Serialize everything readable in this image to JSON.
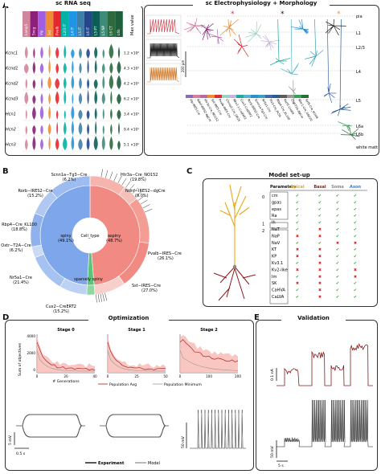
{
  "panelA": {
    "label": "A",
    "rna_title": "sc RNA seq",
    "ephys_title": "sc Electrophysiology + Morphology",
    "genes": [
      "Kcnc1",
      "Kcnd1",
      "Kcnd2",
      "Kcnd3",
      "Hcn1",
      "Hcn2",
      "Hcn3"
    ],
    "max_values": [
      "1.2 ×10²",
      "4.3 ×10¹",
      "4.2 ×10¹",
      "6.2 ×10¹",
      "3.4 ×10¹",
      "9.4 ×10¹",
      "5.1 ×10⁰"
    ],
    "max_header": "Max value",
    "type_headers": [
      "Lamp5",
      "Sncg",
      "Vip",
      "Sst",
      "Pvalb",
      "L2/3 IT",
      "L4 IT",
      "L5 IT",
      "L6 IT",
      "L5 PT",
      "L5 NP",
      "L6 CT",
      "L6b"
    ],
    "type_colors": [
      "#d1869b",
      "#8b1f7a",
      "#a25ee0",
      "#ef8a35",
      "#e5282f",
      "#00b3a4",
      "#1f95e6",
      "#3e7fa8",
      "#25468c",
      "#0b5e56",
      "#3f8b7a",
      "#2e6a3d",
      "#1e5e3b"
    ],
    "layers": [
      "pia",
      "L1",
      "L2/3",
      "L4",
      "L5",
      "L6a",
      "L6b",
      "white matter"
    ],
    "scalebar": "200 µm",
    "cre_lines": [
      "Vip-IRES-Cre",
      "Ndnf-IRES2-dgCre",
      "Htr3a-Cre_NO152",
      "Sst-IRES-Cre",
      "Pvalb-IRES-Cre",
      "Chrna2-Cre_OE25",
      "Nkx2-1-CreERT2",
      "Cux2-CreERT2",
      "Rorb-IRES2-Cre",
      "Scnn1a-Tg3-Cre",
      "Nr5a1-Cre",
      "Tlx3-Cre_PL56",
      "Rbp4-Cre_KL100",
      "Fezf2-CreER",
      "Ctgf-T2A-dgCre",
      "Ntsr1-Cre_GN220",
      "Syt6-Cre_KI148"
    ],
    "cre_colors": [
      "#8b6bb5",
      "#d77f9e",
      "#b06bb0",
      "#ef8a35",
      "#e5282f",
      "#9ad2c4",
      "#c8b4dc",
      "#1fa9a0",
      "#5ab4c8",
      "#2b8fcf",
      "#3aa0b8",
      "#4266a8",
      "#2a5a8e",
      "#5b5b5b",
      "#9a9a9a",
      "#3a9f5a",
      "#2d6b3a"
    ]
  },
  "panelB": {
    "label": "B",
    "center": "Cell_type",
    "inner_labels": [
      "spiny\n(49.1%)",
      "aspiny\n(48.7%)",
      "sparsely spiny"
    ],
    "outer": [
      {
        "name": "Scnn1a−Tg3−Cre",
        "pct": "(6.2%)"
      },
      {
        "name": "Htr3a−Cre_NO152",
        "pct": "(19.8%)"
      },
      {
        "name": "Rorb−IRES2−Cre",
        "pct": "(15.2%)"
      },
      {
        "name": "Ndnf−IRES2−dgCre",
        "pct": "(9.0%)"
      },
      {
        "name": "Rbp4−Cre_KL100",
        "pct": "(18.8%)"
      },
      {
        "name": "Oxtr−T2A−Cre",
        "pct": "(6.2%)"
      },
      {
        "name": "Pvalb−IRES−Cre",
        "pct": "(26.1%)"
      },
      {
        "name": "Nr5a1−Cre",
        "pct": "(21.4%)"
      },
      {
        "name": "Sst−IRES−Cre",
        "pct": "(27.0%)"
      },
      {
        "name": "Cux2−CreERT2",
        "pct": "(15.2%)"
      }
    ]
  },
  "panelC": {
    "label": "C",
    "title": "Model set-up",
    "headers": [
      "Parameters",
      "Apical",
      "Basal",
      "Soma",
      "Axon"
    ],
    "header_colors": [
      "#111111",
      "#e6a817",
      "#8b1a1a",
      "#888888",
      "#3b78c2"
    ],
    "rows": [
      {
        "group": "0",
        "name": "cm",
        "marks": [
          "y",
          "y",
          "y",
          "y"
        ]
      },
      {
        "group": "",
        "name": "gpas",
        "marks": [
          "y",
          "y",
          "y",
          "y"
        ]
      },
      {
        "group": "",
        "name": "epas",
        "marks": [
          "y",
          "y",
          "y",
          "y"
        ]
      },
      {
        "group": "",
        "name": "Ra",
        "marks": [
          "y",
          "y",
          "y",
          "y"
        ]
      },
      {
        "group": "1",
        "name": "Ih",
        "marks": [
          "y",
          "y",
          "y",
          "y"
        ]
      },
      {
        "group": "2",
        "name": "NaT",
        "marks": [
          "y",
          "x",
          "y",
          "y"
        ]
      },
      {
        "group": "",
        "name": "NaP",
        "marks": [
          "x",
          "x",
          "y",
          "y"
        ]
      },
      {
        "group": "",
        "name": "NaV",
        "marks": [
          "y",
          "y",
          "x",
          "x"
        ]
      },
      {
        "group": "",
        "name": "KT",
        "marks": [
          "x",
          "x",
          "y",
          "y"
        ]
      },
      {
        "group": "",
        "name": "KP",
        "marks": [
          "x",
          "x",
          "y",
          "y"
        ]
      },
      {
        "group": "",
        "name": "Kv3.1",
        "marks": [
          "y",
          "x",
          "y",
          "y"
        ]
      },
      {
        "group": "",
        "name": "Kv2-like",
        "marks": [
          "x",
          "x",
          "y",
          "x"
        ]
      },
      {
        "group": "",
        "name": "Im",
        "marks": [
          "y",
          "x",
          "y",
          "x"
        ]
      },
      {
        "group": "",
        "name": "SK",
        "marks": [
          "x",
          "x",
          "y",
          "y"
        ]
      },
      {
        "group": "",
        "name": "CaHVA",
        "marks": [
          "y",
          "x",
          "y",
          "y"
        ]
      },
      {
        "group": "",
        "name": "CaLVA",
        "marks": [
          "y",
          "x",
          "y",
          "y"
        ]
      }
    ]
  },
  "panelD": {
    "label": "D",
    "title": "Optimization",
    "stages": [
      "Stage 0",
      "Stage 1",
      "Stage 2"
    ],
    "ylabel": "Sum of objectives",
    "xlabel": "# Generations",
    "yticks": [
      "4000",
      "2000",
      "0"
    ],
    "xticks_a": [
      "0",
      "20",
      "40"
    ],
    "xticks_b": [
      "0",
      "25",
      "50"
    ],
    "xticks_c": [
      "0",
      "100",
      "200"
    ],
    "legend_avg": "Population Avg",
    "legend_min": "Population Minimum",
    "scale_mv": "5 mV",
    "scale_mv2": "50 mV",
    "scale_s": "0.5 s",
    "legend_exp": "Experiment",
    "legend_model": "Model"
  },
  "panelE": {
    "label": "E",
    "title": "Validation",
    "scale_na": "0.1 nA",
    "scale_mv": "50 mV",
    "scale_s": "5 s"
  }
}
